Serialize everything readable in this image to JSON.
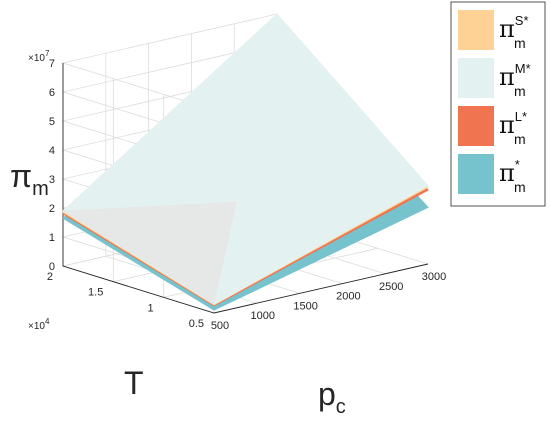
{
  "chart_data": {
    "type": "surface",
    "zlabel": "π",
    "zlabel_sub": "m",
    "xlabel": "p",
    "xlabel_sub": "c",
    "ylabel": "T",
    "z_exponent": "×10",
    "z_exponent_power": "7",
    "y_exponent": "×10",
    "y_exponent_power": "4",
    "z_ticks": [
      "0",
      "1",
      "2",
      "3",
      "4",
      "5",
      "6",
      "7"
    ],
    "x_ticks": [
      "500",
      "1000",
      "1500",
      "2000",
      "2500",
      "3000"
    ],
    "y_ticks": [
      "0.5",
      "1",
      "1.5",
      "2"
    ],
    "xlim": [
      500,
      3000
    ],
    "ylim": [
      5000,
      20000
    ],
    "zlim": [
      0,
      70000000
    ],
    "grid": true,
    "legend_position": "top-right",
    "series": [
      {
        "name": "π",
        "sup": "S*",
        "sub": "m",
        "color": "#fdd294",
        "corners": {
          "x500_T5000": 2800000,
          "x3000_T5000": 26500000,
          "x500_T20000": 18500000,
          "x3000_T20000": 69000000
        }
      },
      {
        "name": "π",
        "sup": "M*",
        "sub": "m",
        "color": "#e3f2f1",
        "corners": {
          "x500_T5000": 3000000,
          "x3000_T5000": 27000000,
          "x500_T20000": 19000000,
          "x3000_T20000": 70000000
        }
      },
      {
        "name": "π",
        "sup": "L*",
        "sub": "m",
        "color": "#f07450",
        "corners": {
          "x500_T5000": 2500000,
          "x3000_T5000": 25500000,
          "x500_T20000": 18000000,
          "x3000_T20000": 68000000
        }
      },
      {
        "name": "π",
        "sup": "*",
        "sub": "m",
        "color": "#76c2cd",
        "corners": {
          "x500_T5000": 1000000,
          "x3000_T5000": 19500000,
          "x500_T20000": 16500000,
          "x3000_T20000": 60000000
        }
      }
    ]
  }
}
